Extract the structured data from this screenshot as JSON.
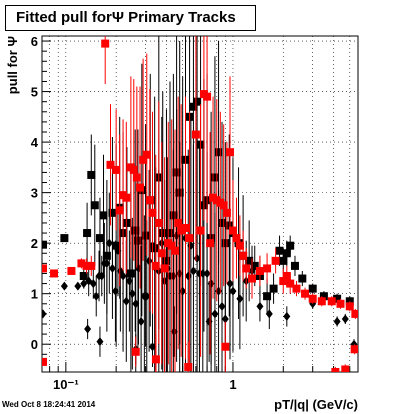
{
  "title": "Fitted pull forΨ   Primary Tracks",
  "timestamp": "Wed Oct  8 18:24:41 2014",
  "chart_data": {
    "type": "scatter",
    "title": "Fitted pull forΨ   Primary Tracks",
    "xlabel": "pT/|q| (GeV/c)",
    "ylabel": "pull for Ψ",
    "xscale": "log",
    "xlim": [
      0.072,
      5.6
    ],
    "ylim": [
      -0.55,
      6.1
    ],
    "x_tick_labels": [
      {
        "x": 0.1,
        "label": "10⁻¹"
      },
      {
        "x": 1,
        "label": "1"
      }
    ],
    "y_tick_labels": [
      {
        "y": 0,
        "label": "0"
      },
      {
        "y": 1,
        "label": "1"
      },
      {
        "y": 2,
        "label": "2"
      },
      {
        "y": 3,
        "label": "3"
      },
      {
        "y": 4,
        "label": "4"
      },
      {
        "y": 5,
        "label": "5"
      },
      {
        "y": 6,
        "label": "6"
      }
    ],
    "grid": true,
    "colors": {
      "black": "#000000",
      "red": "#ff0000"
    },
    "series": [
      {
        "marker": "square",
        "color": "#000000",
        "points": [
          [
            0.073,
            1.97,
            0
          ],
          [
            0.098,
            2.1,
            0.05
          ],
          [
            0.128,
            1.35,
            0.15
          ],
          [
            0.134,
            2.2,
            0.6
          ],
          [
            0.142,
            3.35,
            0.8
          ],
          [
            0.149,
            2.75,
            1.2
          ],
          [
            0.16,
            2.1,
            0.8
          ],
          [
            0.168,
            2.55,
            1.2
          ],
          [
            0.176,
            1.75,
            1.5
          ],
          [
            0.19,
            2.6,
            1.5
          ],
          [
            0.2,
            1.95,
            2.0
          ],
          [
            0.21,
            2.7,
            1.8
          ],
          [
            0.22,
            2.2,
            2.0
          ],
          [
            0.232,
            2.4,
            1.5
          ],
          [
            0.245,
            1.4,
            2.0
          ],
          [
            0.26,
            2.25,
            2.0
          ],
          [
            0.27,
            2.05,
            2.2
          ],
          [
            0.285,
            3.05,
            2.5
          ],
          [
            0.3,
            2.15,
            2.2
          ],
          [
            0.32,
            2.85,
            2.5
          ],
          [
            0.34,
            1.9,
            3.0
          ],
          [
            0.36,
            3.3,
            3.0
          ],
          [
            0.38,
            2.2,
            2.8
          ],
          [
            0.4,
            1.65,
            3.0
          ],
          [
            0.42,
            2.2,
            3.0
          ],
          [
            0.44,
            2.55,
            2.8
          ],
          [
            0.46,
            3.4,
            2.8
          ],
          [
            0.48,
            3.0,
            3.0
          ],
          [
            0.5,
            2.3,
            3.0
          ],
          [
            0.52,
            3.65,
            3.0
          ],
          [
            0.55,
            4.5,
            3.0
          ],
          [
            0.58,
            4.7,
            3.0
          ],
          [
            0.61,
            4.8,
            2.8
          ],
          [
            0.64,
            3.95,
            2.8
          ],
          [
            0.67,
            2.75,
            2.5
          ],
          [
            0.7,
            2.85,
            2.5
          ],
          [
            0.74,
            2.1,
            2.5
          ],
          [
            0.78,
            3.3,
            2.4
          ],
          [
            0.82,
            3.8,
            2.2
          ],
          [
            0.86,
            2.4,
            2.0
          ],
          [
            0.9,
            2.0,
            2.0
          ],
          [
            0.95,
            2.35,
            1.8
          ],
          [
            1.0,
            2.2,
            1.5
          ],
          [
            1.08,
            2.0,
            1.5
          ],
          [
            1.15,
            1.75,
            1.2
          ],
          [
            1.25,
            1.65,
            0.8
          ],
          [
            1.35,
            1.55,
            0.4
          ],
          [
            1.45,
            1.35,
            0.4
          ],
          [
            1.6,
            0.95,
            0.35
          ],
          [
            1.75,
            1.1,
            0.3
          ],
          [
            1.9,
            1.85,
            0.3
          ],
          [
            2.0,
            1.65,
            0.25
          ],
          [
            2.1,
            1.8,
            0.25
          ],
          [
            2.2,
            1.95,
            0.2
          ],
          [
            2.35,
            1.55,
            0.2
          ],
          [
            2.6,
            1.3,
            0.15
          ],
          [
            3.0,
            1.1,
            0.1
          ],
          [
            3.5,
            0.95,
            0.1
          ],
          [
            4.2,
            0.9,
            0.1
          ],
          [
            5.0,
            0.85,
            0.1
          ]
        ]
      },
      {
        "marker": "diamond",
        "color": "#000000",
        "points": [
          [
            0.073,
            0.6,
            0
          ],
          [
            0.098,
            1.15,
            0.05
          ],
          [
            0.118,
            1.15,
            0.05
          ],
          [
            0.128,
            1.2,
            0.1
          ],
          [
            0.137,
            1.25,
            0.3
          ],
          [
            0.146,
            1.2,
            0.3
          ],
          [
            0.152,
            0.95,
            0.4
          ],
          [
            0.158,
            1.35,
            0.5
          ],
          [
            0.164,
            1.35,
            0.4
          ],
          [
            0.17,
            1.6,
            0.8
          ],
          [
            0.176,
            1.6,
            1.0
          ],
          [
            0.182,
            2.0,
            1.0
          ],
          [
            0.19,
            1.5,
            1.0
          ],
          [
            0.198,
            1.05,
            1.0
          ],
          [
            0.205,
            1.85,
            0.9
          ],
          [
            0.212,
            1.45,
            1.2
          ],
          [
            0.22,
            1.35,
            1.5
          ],
          [
            0.23,
            0.85,
            1.2
          ],
          [
            0.24,
            1.25,
            1.0
          ],
          [
            0.25,
            1.0,
            1.5
          ],
          [
            0.262,
            0.8,
            1.4
          ],
          [
            0.272,
            1.5,
            1.5
          ],
          [
            0.282,
            0.45,
            1.5
          ],
          [
            0.295,
            0.95,
            1.6
          ],
          [
            0.305,
            0.95,
            1.5
          ],
          [
            0.315,
            1.65,
            1.8
          ],
          [
            0.33,
            1.95,
            2.0
          ],
          [
            0.345,
            1.5,
            2.0
          ],
          [
            0.36,
            1.45,
            2.0
          ],
          [
            0.375,
            2.0,
            2.5
          ],
          [
            0.39,
            1.25,
            2.0
          ],
          [
            0.405,
            1.5,
            2.2
          ],
          [
            0.42,
            1.35,
            2.0
          ],
          [
            0.44,
            1.35,
            2.5
          ],
          [
            0.46,
            2.15,
            2.5
          ],
          [
            0.48,
            1.4,
            2.6
          ],
          [
            0.5,
            1.05,
            2.5
          ],
          [
            0.52,
            2.1,
            2.5
          ],
          [
            0.54,
            1.35,
            2.5
          ],
          [
            0.56,
            1.95,
            2.5
          ],
          [
            0.58,
            1.45,
            2.5
          ],
          [
            0.61,
            1.7,
            2.5
          ],
          [
            0.63,
            1.4,
            2.5
          ],
          [
            0.66,
            1.4,
            2.5
          ],
          [
            0.7,
            1.4,
            2.4
          ],
          [
            0.74,
            1.2,
            2.0
          ],
          [
            0.78,
            0.6,
            2.0
          ],
          [
            0.82,
            1.05,
            2.0
          ],
          [
            0.86,
            0.75,
            1.5
          ],
          [
            0.9,
            0.5,
            1.5
          ],
          [
            0.96,
            1.2,
            1.5
          ],
          [
            1.0,
            1.05,
            1.2
          ],
          [
            1.1,
            0.9,
            1.0
          ],
          [
            1.2,
            1.25,
            0.8
          ],
          [
            1.3,
            1.45,
            0.5
          ],
          [
            1.45,
            0.75,
            0.3
          ],
          [
            1.65,
            0.6,
            0.3
          ],
          [
            2.1,
            0.55,
            0.2
          ],
          [
            3.0,
            0.8,
            0.1
          ],
          [
            4.2,
            0.45,
            0.1
          ],
          [
            4.7,
            0.5,
            0.1
          ],
          [
            5.3,
            0.0,
            0.1
          ],
          [
            0.135,
            0.3,
            0.2
          ],
          [
            0.16,
            0.05,
            0.3
          ],
          [
            0.262,
            -0.1,
            0.3
          ],
          [
            0.33,
            -0.05,
            0.4
          ],
          [
            0.445,
            0.25,
            0.5
          ],
          [
            0.72,
            0.45,
            0.8
          ]
        ]
      },
      {
        "marker": "square",
        "color": "#ff0000",
        "points": [
          [
            0.073,
            1.5,
            0
          ],
          [
            0.085,
            1.4,
            0.05
          ],
          [
            0.108,
            1.45,
            0.05
          ],
          [
            0.124,
            1.6,
            0.1
          ],
          [
            0.133,
            1.55,
            0.15
          ],
          [
            0.142,
            1.55,
            0.2
          ],
          [
            0.172,
            5.95,
            0.8
          ],
          [
            0.185,
            3.55,
            1.2
          ],
          [
            0.2,
            3.45,
            1.2
          ],
          [
            0.21,
            2.65,
            1.5
          ],
          [
            0.22,
            2.95,
            1.5
          ],
          [
            0.23,
            2.9,
            1.5
          ],
          [
            0.245,
            3.5,
            1.8
          ],
          [
            0.255,
            3.45,
            1.8
          ],
          [
            0.266,
            3.3,
            1.8
          ],
          [
            0.278,
            3.1,
            2.0
          ],
          [
            0.29,
            3.65,
            2.0
          ],
          [
            0.305,
            3.75,
            2.0
          ],
          [
            0.318,
            2.85,
            2.2
          ],
          [
            0.33,
            2.6,
            2.0
          ],
          [
            0.345,
            1.55,
            2.2
          ],
          [
            0.36,
            2.4,
            2.4
          ],
          [
            0.375,
            1.8,
            2.2
          ],
          [
            0.39,
            1.5,
            2.2
          ],
          [
            0.41,
            2.0,
            2.4
          ],
          [
            0.43,
            1.95,
            2.5
          ],
          [
            0.45,
            1.85,
            2.4
          ],
          [
            0.47,
            2.4,
            2.5
          ],
          [
            0.49,
            2.25,
            2.5
          ],
          [
            0.52,
            2.3,
            2.6
          ],
          [
            0.55,
            2.1,
            2.5
          ],
          [
            0.6,
            4.15,
            2.5
          ],
          [
            0.64,
            2.25,
            2.5
          ],
          [
            0.67,
            4.95,
            2.5
          ],
          [
            0.7,
            4.9,
            2.5
          ],
          [
            0.73,
            2.0,
            2.2
          ],
          [
            0.76,
            2.9,
            2.0
          ],
          [
            0.8,
            2.85,
            2.0
          ],
          [
            0.84,
            2.8,
            1.8
          ],
          [
            0.88,
            2.75,
            1.6
          ],
          [
            0.92,
            2.6,
            1.4
          ],
          [
            0.96,
            3.8,
            1.5
          ],
          [
            1.0,
            2.25,
            1.0
          ],
          [
            1.05,
            2.1,
            0.8
          ],
          [
            1.1,
            1.95,
            0.6
          ],
          [
            1.15,
            1.75,
            0.5
          ],
          [
            1.2,
            1.5,
            0.4
          ],
          [
            1.3,
            1.3,
            0.4
          ],
          [
            1.45,
            1.45,
            0.3
          ],
          [
            1.6,
            1.5,
            0.3
          ],
          [
            1.8,
            1.65,
            0.25
          ],
          [
            2.0,
            1.25,
            0.25
          ],
          [
            2.1,
            1.35,
            0.2
          ],
          [
            2.2,
            1.2,
            0.2
          ],
          [
            2.4,
            1.1,
            0.15
          ],
          [
            2.7,
            1.0,
            0.12
          ],
          [
            3.0,
            0.9,
            0.1
          ],
          [
            3.4,
            0.85,
            0.1
          ],
          [
            3.9,
            0.85,
            0.1
          ],
          [
            4.4,
            0.8,
            0.1
          ],
          [
            5.0,
            0.75,
            0.1
          ],
          [
            5.4,
            0.6,
            0.1
          ],
          [
            0.073,
            -0.35,
            0
          ],
          [
            0.262,
            -0.15,
            0.3
          ],
          [
            0.346,
            -0.3,
            0.5
          ],
          [
            0.54,
            -0.45,
            0.5
          ],
          [
            0.9,
            -0.05,
            0.5
          ],
          [
            4.1,
            -0.55,
            0.1
          ],
          [
            4.7,
            -0.5,
            0.1
          ],
          [
            5.35,
            -0.1,
            0.1
          ]
        ]
      }
    ]
  }
}
